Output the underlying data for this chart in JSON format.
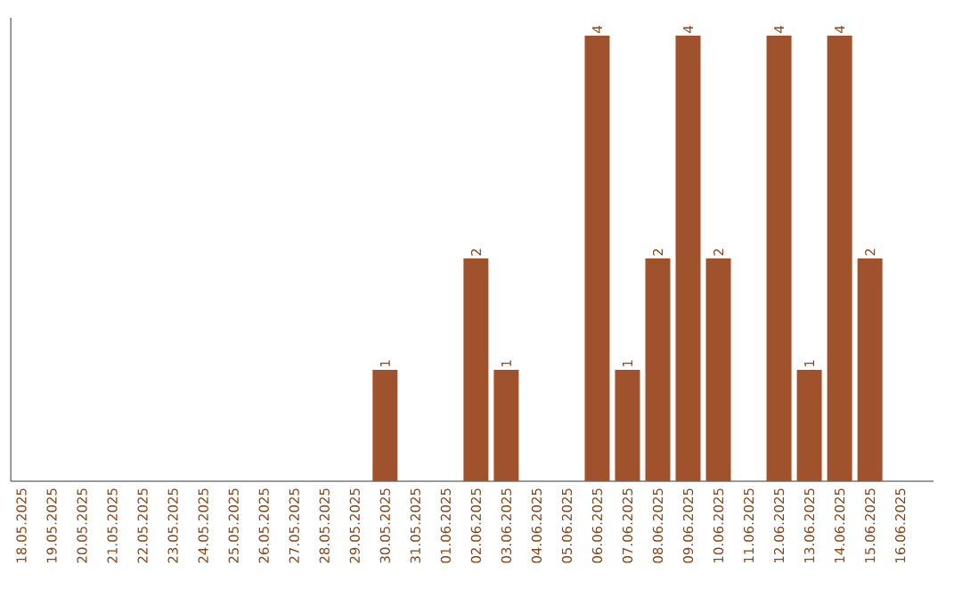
{
  "chart_data": {
    "type": "bar",
    "categories": [
      "18.05.2025",
      "19.05.2025",
      "20.05.2025",
      "21.05.2025",
      "22.05.2025",
      "23.05.2025",
      "24.05.2025",
      "25.05.2025",
      "26.05.2025",
      "27.05.2025",
      "28.05.2025",
      "29.05.2025",
      "30.05.2025",
      "31.05.2025",
      "01.06.2025",
      "02.06.2025",
      "03.06.2025",
      "04.06.2025",
      "05.06.2025",
      "06.06.2025",
      "07.06.2025",
      "08.06.2025",
      "09.06.2025",
      "10.06.2025",
      "11.06.2025",
      "12.06.2025",
      "13.06.2025",
      "14.06.2025",
      "15.06.2025",
      "16.06.2025"
    ],
    "values": [
      null,
      null,
      null,
      null,
      null,
      null,
      null,
      null,
      null,
      null,
      null,
      null,
      1,
      null,
      null,
      2,
      1,
      null,
      null,
      4,
      1,
      2,
      4,
      2,
      null,
      4,
      1,
      4,
      2,
      null
    ],
    "color": "#a0522d",
    "data_labels": true,
    "tick_labels": "x"
  }
}
